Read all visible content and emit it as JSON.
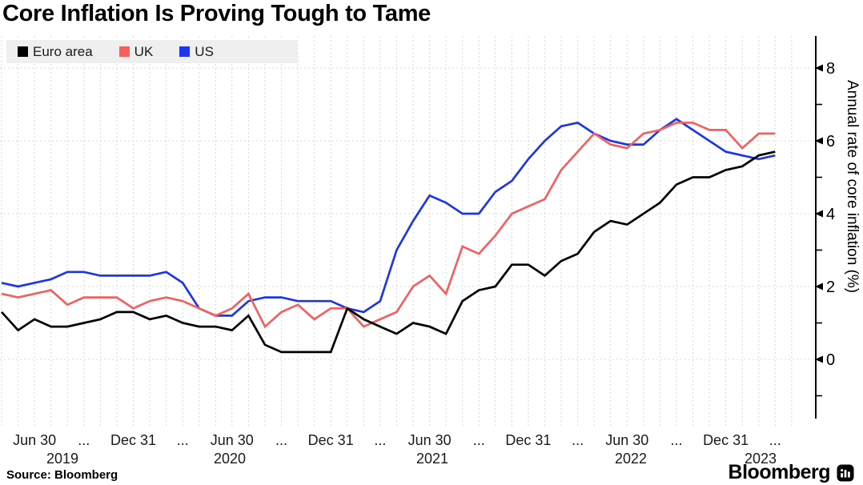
{
  "title": "Core Inflation Is Proving Tough to Tame",
  "source": "Source:  Bloomberg",
  "brand": {
    "name": "Bloomberg"
  },
  "legend": [
    {
      "label": "Euro area",
      "color": "#000000"
    },
    {
      "label": "UK",
      "color": "#f4605f"
    },
    {
      "label": "US",
      "color": "#1c36e8"
    }
  ],
  "chart_data": {
    "type": "line",
    "title": "Core Inflation Is Proving Tough to Tame",
    "ylabel": "Annual rate of core inflation (%)",
    "frequency": "monthly",
    "x_start": "2019-04",
    "x_end": "2023-03",
    "ylim": [
      -1.8,
      8.9
    ],
    "yticks": [
      0,
      2,
      4,
      6,
      8
    ],
    "y_minor_ticks": [
      -1,
      1,
      3,
      5,
      7
    ],
    "grid": "dashed",
    "legend_position": "top-left",
    "x_tick_labels": [
      "Jun 30",
      "...",
      "Dec 31",
      "...",
      "Jun 30",
      "...",
      "Dec 31",
      "...",
      "Jun 30",
      "...",
      "Dec 31",
      "...",
      "Jun 30",
      "...",
      "Dec 31",
      "..."
    ],
    "x_year_labels": [
      "2019",
      "2020",
      "2021",
      "2022",
      "2023"
    ],
    "series": [
      {
        "name": "Euro area",
        "color": "#000000",
        "values": [
          1.3,
          0.8,
          1.1,
          0.9,
          0.9,
          1.0,
          1.1,
          1.3,
          1.3,
          1.1,
          1.2,
          1.0,
          0.9,
          0.9,
          0.8,
          1.2,
          0.4,
          0.2,
          0.2,
          0.2,
          0.2,
          1.4,
          1.1,
          0.9,
          0.7,
          1.0,
          0.9,
          0.7,
          1.6,
          1.9,
          2.0,
          2.6,
          2.6,
          2.3,
          2.7,
          2.9,
          3.5,
          3.8,
          3.7,
          4.0,
          4.3,
          4.8,
          5.0,
          5.0,
          5.2,
          5.3,
          5.6,
          5.7
        ]
      },
      {
        "name": "UK",
        "color": "#f4605f",
        "values": [
          1.8,
          1.7,
          1.8,
          1.9,
          1.5,
          1.7,
          1.7,
          1.7,
          1.4,
          1.6,
          1.7,
          1.6,
          1.4,
          1.2,
          1.4,
          1.8,
          0.9,
          1.3,
          1.5,
          1.1,
          1.4,
          1.4,
          0.9,
          1.1,
          1.3,
          2.0,
          2.3,
          1.8,
          3.1,
          2.9,
          3.4,
          4.0,
          4.2,
          4.4,
          5.2,
          5.7,
          6.2,
          5.9,
          5.8,
          6.2,
          6.3,
          6.5,
          6.5,
          6.3,
          6.3,
          5.8,
          6.2,
          6.2
        ]
      },
      {
        "name": "US",
        "color": "#1c36e8",
        "values": [
          2.1,
          2.0,
          2.1,
          2.2,
          2.4,
          2.4,
          2.3,
          2.3,
          2.3,
          2.3,
          2.4,
          2.1,
          1.4,
          1.2,
          1.2,
          1.6,
          1.7,
          1.7,
          1.6,
          1.6,
          1.6,
          1.4,
          1.3,
          1.6,
          3.0,
          3.8,
          4.5,
          4.3,
          4.0,
          4.0,
          4.6,
          4.9,
          5.5,
          6.0,
          6.4,
          6.5,
          6.2,
          6.0,
          5.9,
          5.9,
          6.3,
          6.6,
          6.3,
          6.0,
          5.7,
          5.6,
          5.5,
          5.6
        ]
      }
    ]
  }
}
